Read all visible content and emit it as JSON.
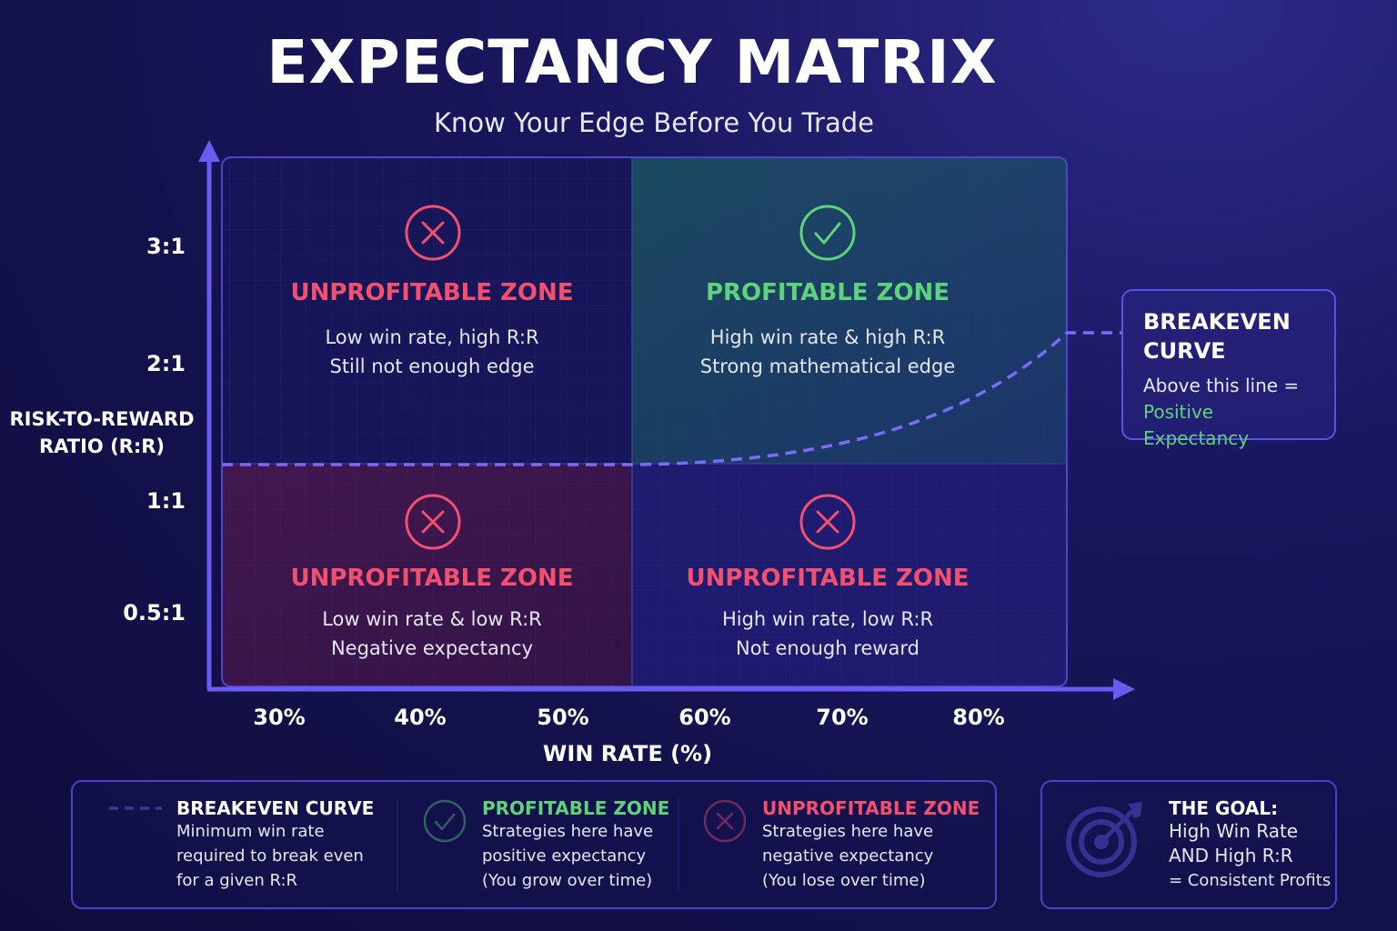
{
  "header": {
    "title": "EXPECTANCY MATRIX",
    "subtitle": "Know Your Edge Before You Trade"
  },
  "chart_data": {
    "type": "matrix",
    "xlabel": "WIN RATE (%)",
    "ylabel_line1": "RISK-TO-REWARD",
    "ylabel_line2": "RATIO (R:R)",
    "x_ticks": [
      "30%",
      "40%",
      "50%",
      "60%",
      "70%",
      "80%"
    ],
    "y_ticks": [
      "3:1",
      "2:1",
      "1:1",
      "0.5:1"
    ],
    "quadrants": [
      {
        "position": "top-left",
        "status": "unprofitable",
        "title": "UNPROFITABLE ZONE",
        "line1": "Low win rate, high R:R",
        "line2": "Still not enough edge"
      },
      {
        "position": "top-right",
        "status": "profitable",
        "title": "PROFITABLE ZONE",
        "line1": "High win rate & high R:R",
        "line2": "Strong mathematical edge"
      },
      {
        "position": "bottom-left",
        "status": "unprofitable",
        "title": "UNPROFITABLE ZONE",
        "line1": "Low win rate & low R:R",
        "line2": "Negative expectancy"
      },
      {
        "position": "bottom-right",
        "status": "unprofitable",
        "title": "UNPROFITABLE ZONE",
        "line1": "High win rate, low R:R",
        "line2": "Not enough reward"
      }
    ],
    "breakeven_curve": {
      "style": "dashed",
      "color": "#7b6cf6"
    },
    "colors": {
      "profitable": "#5fd37a",
      "unprofitable": "#f2506e",
      "axis": "#6a5cf0"
    }
  },
  "callout": {
    "title_line1": "BREAKEVEN",
    "title_line2": "CURVE",
    "text_line1": "Above this line =",
    "text_line2": "Positive Expectancy"
  },
  "legend": {
    "breakeven": {
      "title": "BREAKEVEN CURVE",
      "line1": "Minimum win rate",
      "line2": "required to break even",
      "line3": "for a given R:R"
    },
    "profitable": {
      "title": "PROFITABLE ZONE",
      "line1": "Strategies here have",
      "line2": "positive expectancy",
      "line3": "(You grow over time)"
    },
    "unprofitable": {
      "title": "UNPROFITABLE ZONE",
      "line1": "Strategies here have",
      "line2": "negative expectancy",
      "line3": "(You lose over time)"
    }
  },
  "goal": {
    "title": "THE GOAL:",
    "line1": "High Win Rate",
    "line2": "AND High R:R",
    "line3": "= Consistent Profits",
    "icon": "target-icon"
  }
}
